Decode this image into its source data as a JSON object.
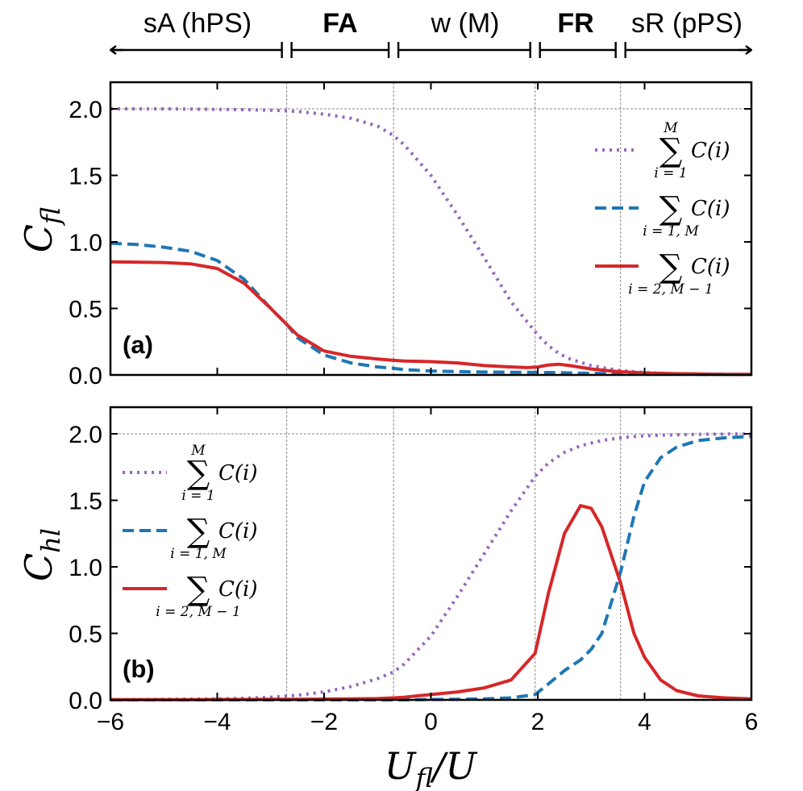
{
  "header": {
    "phases": [
      {
        "label": "sA (hPS)",
        "bold": false,
        "from": -6.0,
        "to": -2.7
      },
      {
        "label": "FA",
        "bold": true,
        "from": -2.7,
        "to": -0.7
      },
      {
        "label": "w (M)",
        "bold": false,
        "from": -0.7,
        "to": 1.95
      },
      {
        "label": "FR",
        "bold": true,
        "from": 1.95,
        "to": 3.55
      },
      {
        "label": "sR (pPS)",
        "bold": false,
        "from": 3.55,
        "to": 6.0
      }
    ]
  },
  "chart_data": [
    {
      "type": "line",
      "panel_label": "(a)",
      "ylabel_main": "C",
      "ylabel_sub": "fl",
      "xlim": [
        -6,
        6
      ],
      "ylim": [
        0,
        2.2
      ],
      "yticks": [
        0.0,
        0.5,
        1.0,
        1.5,
        2.0
      ],
      "ytick_labels": [
        "0.0",
        "0.5",
        "1.0",
        "1.5",
        "2.0"
      ],
      "vlines": [
        -2.7,
        -0.7,
        1.95,
        3.55
      ],
      "hline": 2.0,
      "legend_position": "right",
      "x": [
        -6,
        -5.5,
        -5,
        -4.5,
        -4,
        -3.5,
        -3,
        -2.7,
        -2.5,
        -2,
        -1.5,
        -1,
        -0.7,
        -0.5,
        0,
        0.5,
        1,
        1.5,
        1.8,
        2,
        2.2,
        2.4,
        2.6,
        3,
        3.5,
        4,
        4.5,
        5,
        5.5,
        6
      ],
      "series": [
        {
          "name": "sum_all",
          "sum_top": "M",
          "sum_bottom": "i = 1",
          "color": "#9467bd",
          "dash": "dotted",
          "values": [
            2.0,
            2.0,
            2.0,
            1.998,
            1.996,
            1.994,
            1.99,
            1.985,
            1.98,
            1.96,
            1.93,
            1.87,
            1.8,
            1.73,
            1.5,
            1.2,
            0.88,
            0.55,
            0.4,
            0.3,
            0.22,
            0.16,
            0.12,
            0.07,
            0.035,
            0.018,
            0.01,
            0.006,
            0.004,
            0.003
          ]
        },
        {
          "name": "sum_edges",
          "sum_top": "",
          "sum_bottom": "i = 1, M",
          "color": "#1f77b4",
          "dash": "dashed",
          "values": [
            0.99,
            0.98,
            0.96,
            0.93,
            0.86,
            0.72,
            0.5,
            0.38,
            0.28,
            0.15,
            0.09,
            0.06,
            0.05,
            0.04,
            0.03,
            0.025,
            0.022,
            0.02,
            0.02,
            0.019,
            0.018,
            0.017,
            0.015,
            0.012,
            0.01,
            0.008,
            0.006,
            0.005,
            0.004,
            0.003
          ]
        },
        {
          "name": "sum_bulk",
          "sum_top": "",
          "sum_bottom": "i = 2, M − 1",
          "color": "#d62728",
          "dash": "solid",
          "values": [
            0.85,
            0.848,
            0.845,
            0.835,
            0.8,
            0.69,
            0.5,
            0.38,
            0.3,
            0.18,
            0.14,
            0.12,
            0.11,
            0.105,
            0.1,
            0.09,
            0.07,
            0.06,
            0.055,
            0.06,
            0.075,
            0.08,
            0.07,
            0.045,
            0.025,
            0.015,
            0.01,
            0.007,
            0.005,
            0.004
          ]
        }
      ]
    },
    {
      "type": "line",
      "panel_label": "(b)",
      "ylabel_main": "C",
      "ylabel_sub": "hl",
      "xlabel_main": "U",
      "xlabel_sub": "fl",
      "xlabel_tail": "/U",
      "xlim": [
        -6,
        6
      ],
      "ylim": [
        0,
        2.2
      ],
      "xticks": [
        -6,
        -4,
        -2,
        0,
        2,
        4,
        6
      ],
      "xtick_labels": [
        "−6",
        "−4",
        "−2",
        "0",
        "2",
        "4",
        "6"
      ],
      "yticks": [
        0.0,
        0.5,
        1.0,
        1.5,
        2.0
      ],
      "ytick_labels": [
        "0.0",
        "0.5",
        "1.0",
        "1.5",
        "2.0"
      ],
      "vlines": [
        -2.7,
        -0.7,
        1.95,
        3.55
      ],
      "hline": 2.0,
      "legend_position": "left",
      "x": [
        -6,
        -5.5,
        -5,
        -4.5,
        -4,
        -3.5,
        -3,
        -2.5,
        -2,
        -1.5,
        -1,
        -0.7,
        -0.5,
        0,
        0.5,
        1,
        1.5,
        1.95,
        2.2,
        2.5,
        2.8,
        3.0,
        3.2,
        3.55,
        3.8,
        4,
        4.3,
        4.6,
        5,
        5.5,
        6
      ],
      "series": [
        {
          "name": "sum_all",
          "sum_top": "M",
          "sum_bottom": "i = 1",
          "color": "#9467bd",
          "dash": "dotted",
          "values": [
            0.002,
            0.003,
            0.004,
            0.006,
            0.008,
            0.012,
            0.02,
            0.035,
            0.06,
            0.1,
            0.16,
            0.21,
            0.27,
            0.48,
            0.78,
            1.1,
            1.42,
            1.68,
            1.78,
            1.86,
            1.91,
            1.93,
            1.95,
            1.97,
            1.98,
            1.985,
            1.99,
            1.993,
            1.996,
            1.998,
            2.0
          ]
        },
        {
          "name": "sum_edges",
          "sum_top": "",
          "sum_bottom": "i = 1, M",
          "color": "#1f77b4",
          "dash": "dashed",
          "values": [
            0,
            0,
            0,
            0,
            0,
            0,
            0,
            0,
            0,
            0,
            0,
            0,
            0.0,
            0.003,
            0.005,
            0.007,
            0.015,
            0.04,
            0.12,
            0.22,
            0.3,
            0.38,
            0.5,
            0.96,
            1.38,
            1.64,
            1.82,
            1.9,
            1.95,
            1.97,
            1.98
          ]
        },
        {
          "name": "sum_bulk",
          "sum_top": "",
          "sum_bottom": "i = 2, M − 1",
          "color": "#d62728",
          "dash": "solid",
          "values": [
            0.002,
            0.002,
            0.002,
            0.002,
            0.003,
            0.003,
            0.004,
            0.005,
            0.006,
            0.007,
            0.01,
            0.015,
            0.02,
            0.04,
            0.06,
            0.09,
            0.15,
            0.35,
            0.8,
            1.25,
            1.46,
            1.44,
            1.3,
            0.88,
            0.5,
            0.32,
            0.15,
            0.07,
            0.03,
            0.015,
            0.008
          ]
        }
      ]
    }
  ]
}
